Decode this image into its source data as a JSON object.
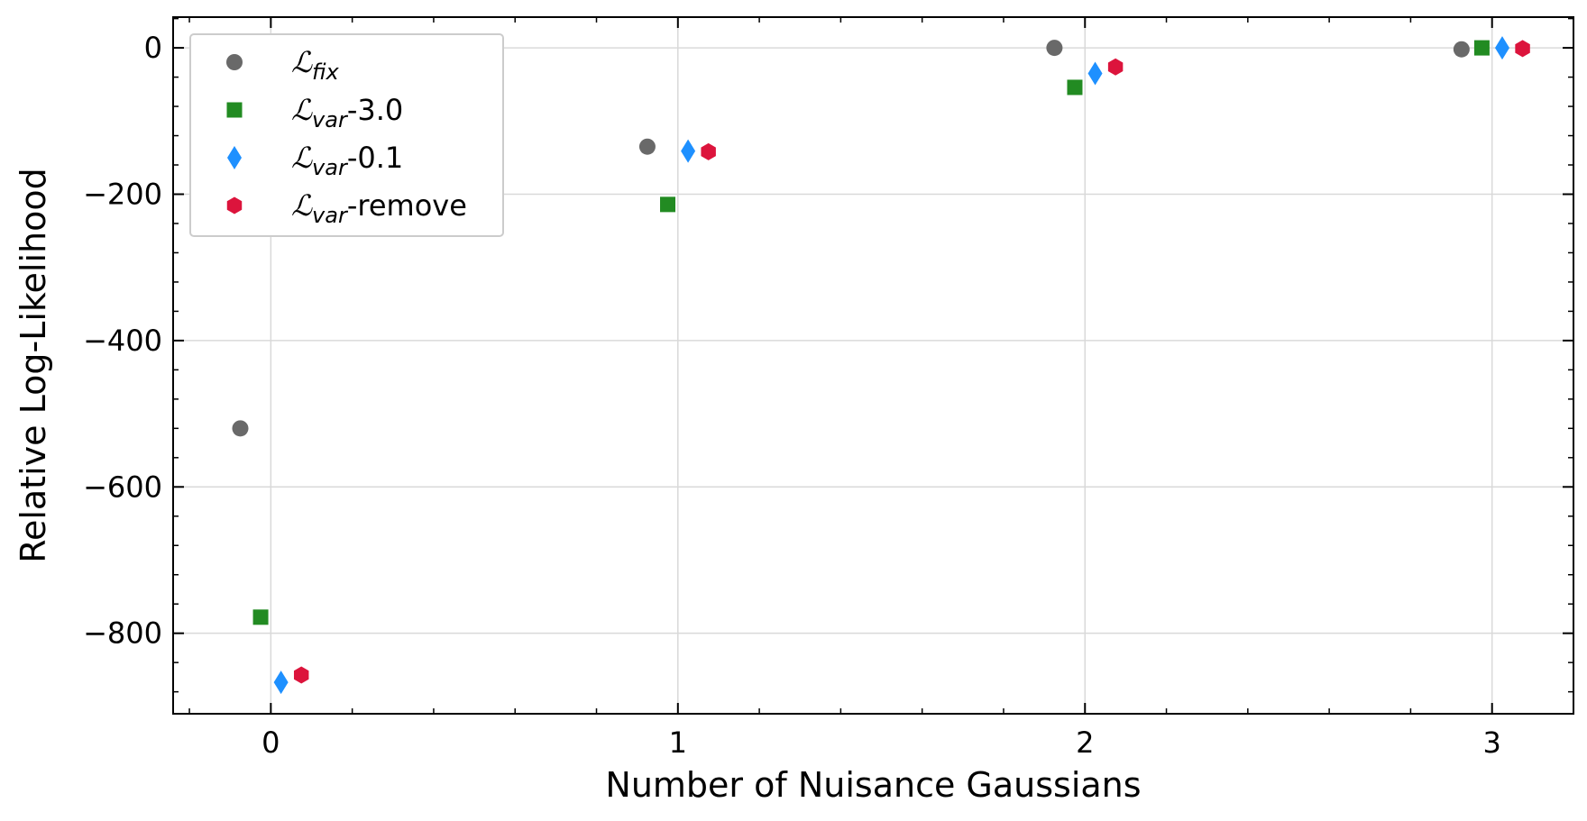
{
  "chart_data": {
    "type": "scatter",
    "title": "",
    "xlabel": "Number of Nuisance Gaussians",
    "ylabel": "Relative Log-Likelihood",
    "xlim": [
      -0.24,
      3.2
    ],
    "ylim": [
      -910,
      42
    ],
    "x_ticks": [
      0,
      1,
      2,
      3
    ],
    "x_tick_labels": [
      "0",
      "1",
      "2",
      "3"
    ],
    "y_ticks": [
      0,
      -200,
      -400,
      -600,
      -800
    ],
    "y_tick_labels": [
      "0",
      "−200",
      "−400",
      "−600",
      "−800"
    ],
    "grid": true,
    "legend_placement": "top-left",
    "series": [
      {
        "name": "ℒfix",
        "legend_main": "ℒ",
        "legend_sub": "fix",
        "legend_suffix": "",
        "marker": "circle",
        "color": "#696969",
        "offset": -0.075,
        "x": [
          0,
          1,
          2,
          3
        ],
        "y": [
          -520,
          -135,
          0,
          -2
        ]
      },
      {
        "name": "ℒvar-3.0",
        "legend_main": "ℒ",
        "legend_sub": "var",
        "legend_suffix": "-3.0",
        "marker": "square",
        "color": "#228b22",
        "offset": -0.025,
        "x": [
          0,
          1,
          2,
          3
        ],
        "y": [
          -778,
          -214,
          -54,
          0
        ]
      },
      {
        "name": "ℒvar-0.1",
        "legend_main": "ℒ",
        "legend_sub": "var",
        "legend_suffix": "-0.1",
        "marker": "diamond",
        "color": "#1e90ff",
        "offset": 0.025,
        "x": [
          0,
          1,
          2,
          3
        ],
        "y": [
          -867,
          -141,
          -35,
          0
        ]
      },
      {
        "name": "ℒvar-remove",
        "legend_main": "ℒ",
        "legend_sub": "var",
        "legend_suffix": "-remove",
        "marker": "hexagon",
        "color": "#dc143c",
        "offset": 0.075,
        "x": [
          0,
          1,
          2,
          3
        ],
        "y": [
          -857,
          -142,
          -26,
          -1
        ]
      }
    ]
  }
}
